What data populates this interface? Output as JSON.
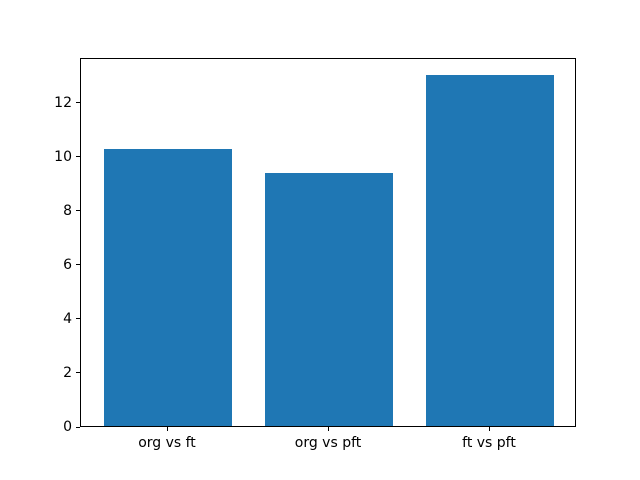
{
  "figure": {
    "background": "#ffffff",
    "spine_color": "#000000",
    "tick_color": "#000000"
  },
  "chart_data": {
    "type": "bar",
    "title": "",
    "xlabel": "",
    "ylabel": "",
    "categories": [
      "org vs ft",
      "org vs pft",
      "ft vs pft"
    ],
    "values": [
      10.24,
      9.35,
      13.0
    ],
    "bar_color": "#1f77b4",
    "bar_width": 0.8,
    "ylim": [
      0,
      13.65
    ],
    "xlim": [
      -0.54,
      2.54
    ],
    "yticks": [
      0,
      2,
      4,
      6,
      8,
      10,
      12
    ],
    "grid": false,
    "legend": null
  }
}
